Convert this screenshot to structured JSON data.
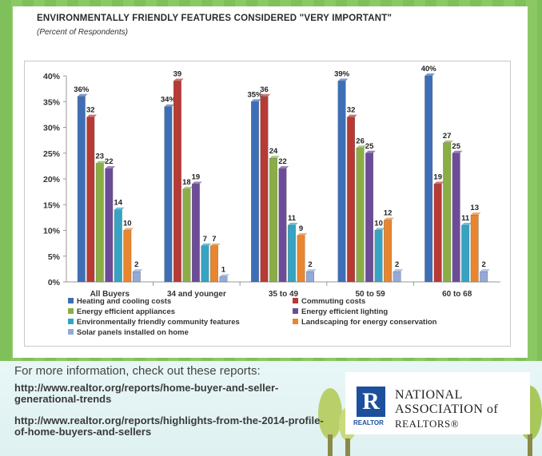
{
  "title": "ENVIRONMENTALLY FRIENDLY FEATURES CONSIDERED \"VERY IMPORTANT\"",
  "subtitle": "(Percent of Respondents)",
  "chart_data": {
    "type": "bar",
    "categories": [
      "All Buyers",
      "34 and younger",
      "35 to 49",
      "50 to 59",
      "60 to 68"
    ],
    "ylim": [
      0,
      40
    ],
    "yticks": [
      "0%",
      "5%",
      "10%",
      "15%",
      "20%",
      "25%",
      "30%",
      "35%",
      "40%"
    ],
    "grid": false,
    "legend_position": "bottom",
    "series": [
      {
        "name": "Heating and cooling costs",
        "color": "#3e6fb6",
        "values": [
          36,
          34,
          35,
          39,
          40
        ],
        "labels": [
          "36%",
          "34%",
          "35%",
          "39%",
          "40%"
        ]
      },
      {
        "name": "Commuting costs",
        "color": "#b83a35",
        "values": [
          32,
          39,
          36,
          32,
          19
        ],
        "labels": [
          "32",
          "39",
          "36",
          "32",
          "19"
        ]
      },
      {
        "name": "Energy efficient appliances",
        "color": "#8aae45",
        "values": [
          23,
          18,
          24,
          26,
          27
        ],
        "labels": [
          "23",
          "18",
          "24",
          "26",
          "27"
        ]
      },
      {
        "name": "Energy efficient lighting",
        "color": "#6c4c98",
        "values": [
          22,
          19,
          22,
          25,
          25
        ],
        "labels": [
          "22",
          "19",
          "22",
          "25",
          "25"
        ]
      },
      {
        "name": "Environmentally friendly community features",
        "color": "#36a3c2",
        "values": [
          14,
          7,
          11,
          10,
          11
        ],
        "labels": [
          "14",
          "7",
          "11",
          "10",
          "11"
        ]
      },
      {
        "name": "Landscaping for energy conservation",
        "color": "#e8862f",
        "values": [
          10,
          7,
          9,
          12,
          13
        ],
        "labels": [
          "10",
          "7",
          "9",
          "12",
          "13"
        ]
      },
      {
        "name": "Solar panels installed on home",
        "color": "#93a9d8",
        "values": [
          2,
          1,
          2,
          2,
          2
        ],
        "labels": [
          "2",
          "1",
          "2",
          "2",
          "2"
        ]
      }
    ]
  },
  "footer": {
    "info": "For more information, check out these reports:",
    "link1": "http://www.realtor.org/reports/home-buyer-and-seller-generational-trends",
    "link2": "http://www.realtor.org/reports/highlights-from-the-2014-profile-of-home-buyers-and-sellers"
  },
  "logo": {
    "mark": "R",
    "small": "REALTOR",
    "line1": "NATIONAL",
    "line2": "ASSOCIATION of",
    "line3": "REALTORS®"
  }
}
